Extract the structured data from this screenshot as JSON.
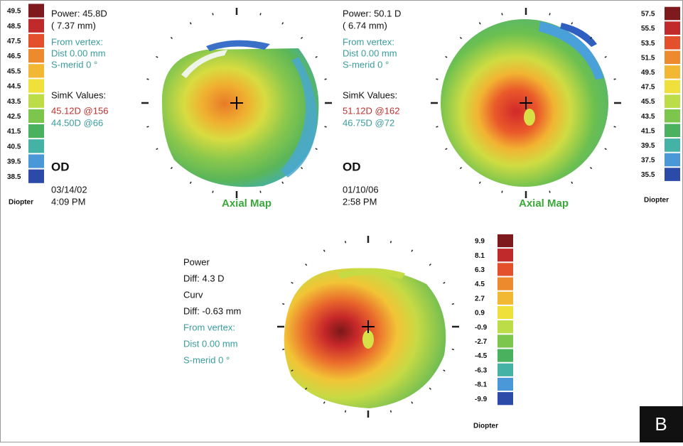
{
  "maps": [
    {
      "power": "Power:  45.8D",
      "radius": "(  7.37 mm)",
      "from_vertex": "From vertex:",
      "dist": "Dist  0.00 mm",
      "s_merid": "S-merid      0 °",
      "simk_title": "SimK Values:",
      "simk_1": "45.12D @156",
      "simk_2": "44.50D @66",
      "eye": "OD",
      "date": "03/14/02",
      "time": "4:09 PM",
      "map_label": "Axial Map"
    },
    {
      "power": "Power:  50.1 D",
      "radius": "(  6.74 mm)",
      "from_vertex": "From vertex:",
      "dist": "Dist  0.00 mm",
      "s_merid": "S-merid      0 °",
      "simk_title": "SimK Values:",
      "simk_1": "51.12D @162",
      "simk_2": "46.75D @72",
      "eye": "OD",
      "date": "01/10/06",
      "time": "2:58 PM",
      "map_label": "Axial Map"
    }
  ],
  "diff": {
    "power": "Power",
    "power_diff": "Diff:  4.3 D",
    "curv": "Curv",
    "curv_diff": "Diff:  -0.63 mm",
    "from_vertex": "From vertex:",
    "dist": "Dist  0.00 mm",
    "s_merid": "S-merid      0 °"
  },
  "scales": [
    {
      "labels": [
        "49.5",
        "48.5",
        "47.5",
        "46.5",
        "45.5",
        "44.5",
        "43.5",
        "42.5",
        "41.5",
        "40.5",
        "39.5",
        "38.5"
      ],
      "unit": "Diopter"
    },
    {
      "labels": [
        "57.5",
        "55.5",
        "53.5",
        "51.5",
        "49.5",
        "47.5",
        "45.5",
        "43.5",
        "41.5",
        "39.5",
        "37.5",
        "35.5"
      ],
      "unit": "Diopter"
    },
    {
      "labels": [
        "9.9",
        "8.1",
        "6.3",
        "4.5",
        "2.7",
        "0.9",
        "-0.9",
        "-2.7",
        "-4.5",
        "-6.3",
        "-8.1",
        "-9.9"
      ],
      "unit": "Diopter"
    }
  ],
  "panel_letter": "B"
}
